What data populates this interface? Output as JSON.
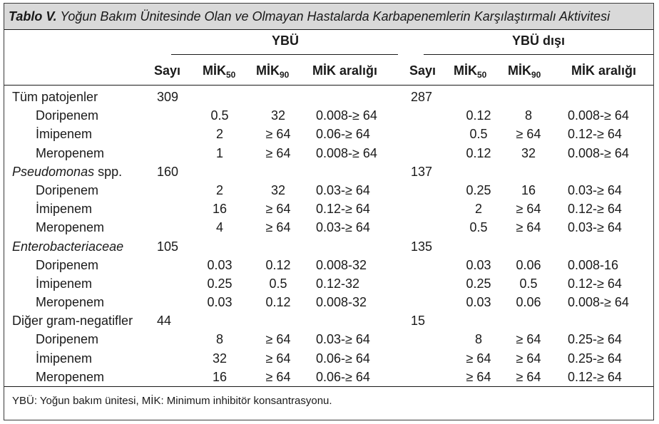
{
  "title": {
    "label": "Tablo V.",
    "text": "Yoğun Bakım Ünitesinde Olan ve Olmayan Hastalarda Karbapenemlerin Karşılaştırmalı Aktivitesi"
  },
  "groups": {
    "ybu": "YBÜ",
    "ybu_disi": "YBÜ dışı"
  },
  "headers": {
    "sayi": "Sayı",
    "mik": "MİK",
    "sub50": "50",
    "sub90": "90",
    "range": "MİK aralığı"
  },
  "rows": [
    {
      "name": "Tüm patojenler",
      "kind": "group",
      "italic": false,
      "n1": "309",
      "n2": "287"
    },
    {
      "name": "Doripenem",
      "kind": "drug",
      "a50": "0.5",
      "a90": "32",
      "ar": "0.008-≥ 64",
      "b50": "0.12",
      "b90": "8",
      "br": "0.008-≥ 64"
    },
    {
      "name": "İmipenem",
      "kind": "drug",
      "a50": "2",
      "a90": "≥ 64",
      "ar": "0.06-≥ 64",
      "b50": "0.5",
      "b90": "≥ 64",
      "br": "0.12-≥ 64"
    },
    {
      "name": "Meropenem",
      "kind": "drug",
      "a50": "1",
      "a90": "≥ 64",
      "ar": "0.008-≥ 64",
      "b50": "0.12",
      "b90": "32",
      "br": "0.008-≥ 64"
    },
    {
      "name": "Pseudomonas",
      "suffix": " spp.",
      "kind": "group",
      "italic": true,
      "n1": "160",
      "n2": "137"
    },
    {
      "name": "Doripenem",
      "kind": "drug",
      "a50": "2",
      "a90": "32",
      "ar": "0.03-≥ 64",
      "b50": "0.25",
      "b90": "16",
      "br": "0.03-≥ 64"
    },
    {
      "name": "İmipenem",
      "kind": "drug",
      "a50": "16",
      "a90": "≥ 64",
      "ar": "0.12-≥ 64",
      "b50": "2",
      "b90": "≥ 64",
      "br": "0.12-≥ 64"
    },
    {
      "name": "Meropenem",
      "kind": "drug",
      "a50": "4",
      "a90": "≥ 64",
      "ar": "0.03-≥ 64",
      "b50": "0.5",
      "b90": "≥ 64",
      "br": "0.03-≥ 64"
    },
    {
      "name": "Enterobacteriaceae",
      "kind": "group",
      "italic": true,
      "n1": "105",
      "n2": "135"
    },
    {
      "name": "Doripenem",
      "kind": "drug",
      "a50": "0.03",
      "a90": "0.12",
      "ar": "0.008-32",
      "b50": "0.03",
      "b90": "0.06",
      "br": "0.008-16"
    },
    {
      "name": "İmipenem",
      "kind": "drug",
      "a50": "0.25",
      "a90": "0.5",
      "ar": "0.12-32",
      "b50": "0.25",
      "b90": "0.5",
      "br": "0.12-≥ 64"
    },
    {
      "name": "Meropenem",
      "kind": "drug",
      "a50": "0.03",
      "a90": "0.12",
      "ar": "0.008-32",
      "b50": "0.03",
      "b90": "0.06",
      "br": "0.008-≥ 64"
    },
    {
      "name": "Diğer gram-negatifler",
      "kind": "group",
      "italic": false,
      "n1": "44",
      "n2": "15"
    },
    {
      "name": "Doripenem",
      "kind": "drug",
      "a50": "8",
      "a90": "≥ 64",
      "ar": "0.03-≥ 64",
      "b50": "8",
      "b90": "≥ 64",
      "br": "0.25-≥ 64"
    },
    {
      "name": "İmipenem",
      "kind": "drug",
      "a50": "32",
      "a90": "≥ 64",
      "ar": "0.06-≥ 64",
      "b50": "≥ 64",
      "b90": "≥ 64",
      "br": "0.25-≥ 64"
    },
    {
      "name": "Meropenem",
      "kind": "drug",
      "a50": "16",
      "a90": "≥ 64",
      "ar": "0.06-≥ 64",
      "b50": "≥ 64",
      "b90": "≥ 64",
      "br": "0.12-≥ 64"
    }
  ],
  "footnote": "YBÜ: Yoğun bakım ünitesi, MİK: Minimum inhibitör konsantrasyonu."
}
